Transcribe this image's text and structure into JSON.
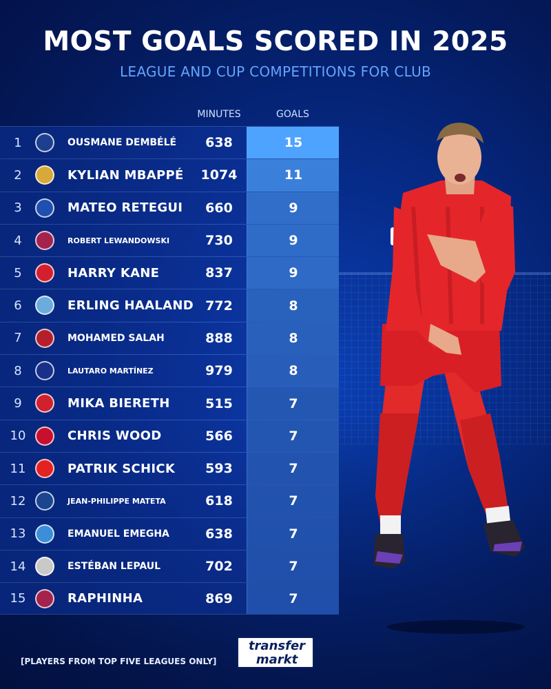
{
  "title": "MOST GOALS SCORED IN 2025",
  "subtitle": "LEAGUE AND CUP COMPETITIONS FOR CLUB",
  "columns": {
    "minutes": "MINUTES",
    "goals": "GOALS"
  },
  "footnote": "[PLAYERS FROM TOP FIVE LEAGUES ONLY]",
  "logo": {
    "line1": "transfer",
    "line2": "markt"
  },
  "colors": {
    "background": "#062a86",
    "subtitle": "#63a5ff",
    "goals_high": "#4ea3ff",
    "goals_low": "#163f9a"
  },
  "chart_data": {
    "type": "table",
    "title": "MOST GOALS SCORED IN 2025",
    "subtitle": "LEAGUE AND CUP COMPETITIONS FOR CLUB",
    "columns": [
      "",
      "",
      "MINUTES",
      "GOALS"
    ],
    "rows": [
      {
        "rank": "1",
        "player": "OUSMANE DEMBÉLÉ",
        "minutes": 638,
        "goals": 15,
        "crest": "PSG",
        "crest_color": "#1c3f8f",
        "size": "md"
      },
      {
        "rank": "2",
        "player": "KYLIAN MBAPPÉ",
        "minutes": 1074,
        "goals": 11,
        "crest": "RM",
        "crest_color": "#d6a93a",
        "size": "lg"
      },
      {
        "rank": "3",
        "player": "MATEO RETEGUI",
        "minutes": 660,
        "goals": 9,
        "crest": "ATA",
        "crest_color": "#1f4fb0",
        "size": "lg"
      },
      {
        "rank": "4",
        "player": "ROBERT LEWANDOWSKI",
        "minutes": 730,
        "goals": 9,
        "crest": "FCB",
        "crest_color": "#a3234d",
        "size": "sm"
      },
      {
        "rank": "5",
        "player": "HARRY KANE",
        "minutes": 837,
        "goals": 9,
        "crest": "FCB",
        "crest_color": "#d3202f",
        "size": "lg"
      },
      {
        "rank": "6",
        "player": "ERLING HAALAND",
        "minutes": 772,
        "goals": 8,
        "crest": "MC",
        "crest_color": "#6cabdd",
        "size": "lg"
      },
      {
        "rank": "7",
        "player": "MOHAMED SALAH",
        "minutes": 888,
        "goals": 8,
        "crest": "LFC",
        "crest_color": "#b3202b",
        "size": "md"
      },
      {
        "rank": "8",
        "player": "LAUTARO MARTÍNEZ",
        "minutes": 979,
        "goals": 8,
        "crest": "IM",
        "crest_color": "#1a2f8a",
        "size": "sm"
      },
      {
        "rank": "9",
        "player": "MIKA BIERETH",
        "minutes": 515,
        "goals": 7,
        "crest": "ASM",
        "crest_color": "#d1202e",
        "size": "lg"
      },
      {
        "rank": "10",
        "player": "CHRIS WOOD",
        "minutes": 566,
        "goals": 7,
        "crest": "NFO",
        "crest_color": "#c8102e",
        "size": "lg"
      },
      {
        "rank": "11",
        "player": "PATRIK SCHICK",
        "minutes": 593,
        "goals": 7,
        "crest": "B04",
        "crest_color": "#e32221",
        "size": "lg"
      },
      {
        "rank": "12",
        "player": "JEAN-PHILIPPE MATETA",
        "minutes": 618,
        "goals": 7,
        "crest": "CPFC",
        "crest_color": "#1b458f",
        "size": "sm"
      },
      {
        "rank": "13",
        "player": "EMANUEL EMEGHA",
        "minutes": 638,
        "goals": 7,
        "crest": "RCS",
        "crest_color": "#3b8fd8",
        "size": "md"
      },
      {
        "rank": "14",
        "player": "ESTÉBAN LEPAUL",
        "minutes": 702,
        "goals": 7,
        "crest": "SCO",
        "crest_color": "#c9c9c9",
        "size": "md"
      },
      {
        "rank": "15",
        "player": "RAPHINHA",
        "minutes": 869,
        "goals": 7,
        "crest": "FCB",
        "crest_color": "#a3234d",
        "size": "lg"
      }
    ]
  }
}
